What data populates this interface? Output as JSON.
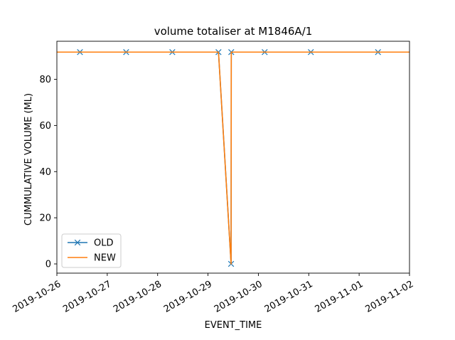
{
  "chart_data": {
    "type": "line",
    "title": "volume totaliser at M1846A/1",
    "xlabel": "EVENT_TIME",
    "ylabel": "CUMMULATIVE VOLUME (ML)",
    "xlim": [
      "2019-10-26",
      "2019-11-02"
    ],
    "ylim": [
      -4,
      96.5
    ],
    "x_ticks": [
      "2019-10-26",
      "2019-10-27",
      "2019-10-28",
      "2019-10-29",
      "2019-10-30",
      "2019-10-31",
      "2019-11-01",
      "2019-11-02"
    ],
    "y_ticks": [
      0,
      20,
      40,
      60,
      80
    ],
    "legend_position": "lower-left",
    "grid": false,
    "series": [
      {
        "name": "OLD",
        "color": "#1f77b4",
        "marker": "x",
        "x": [
          "2019-10-26T00:00",
          "2019-10-26T11:00",
          "2019-10-27T09:00",
          "2019-10-28T07:00",
          "2019-10-29T05:00",
          "2019-10-29T11:00",
          "2019-10-29T11:05",
          "2019-10-30T03:00",
          "2019-10-31T01:00",
          "2019-11-01T09:00",
          "2019-11-02T00:00"
        ],
        "y": [
          91.8,
          91.8,
          91.8,
          91.8,
          91.8,
          0,
          91.8,
          91.8,
          91.8,
          91.8,
          91.8
        ],
        "marker_mask": [
          false,
          true,
          true,
          true,
          true,
          true,
          true,
          true,
          true,
          true,
          false
        ]
      },
      {
        "name": "NEW",
        "color": "#ff7f0e",
        "marker": "none",
        "x": [
          "2019-10-26T00:00",
          "2019-10-29T05:00",
          "2019-10-29T11:00",
          "2019-10-29T11:05",
          "2019-11-02T00:00"
        ],
        "y": [
          91.8,
          91.8,
          0,
          91.8,
          91.8
        ]
      }
    ]
  }
}
